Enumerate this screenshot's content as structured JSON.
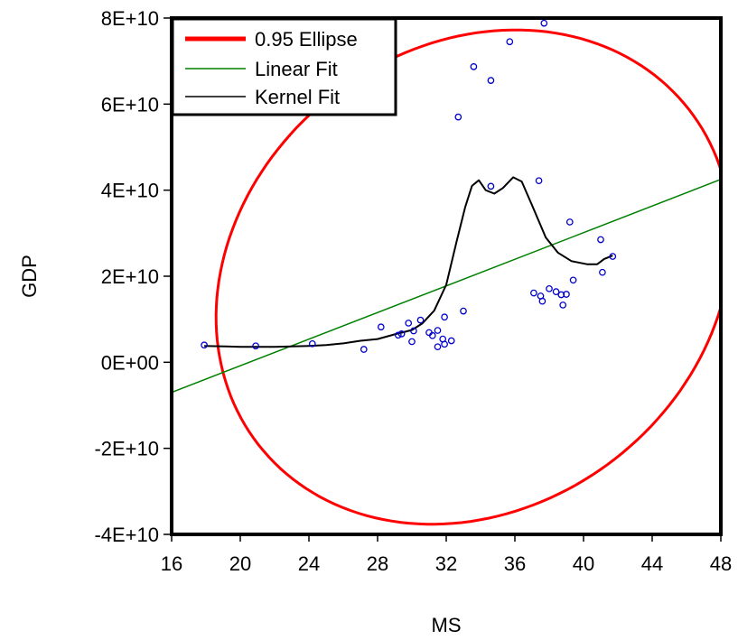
{
  "chart_data": {
    "type": "scatter",
    "xlabel": "MS",
    "ylabel": "GDP",
    "xlim": [
      16,
      48
    ],
    "ylim": [
      -40000000000,
      80000000000
    ],
    "x_ticks": [
      16,
      20,
      24,
      28,
      32,
      36,
      40,
      44,
      48
    ],
    "x_tick_labels": [
      "16",
      "20",
      "24",
      "28",
      "32",
      "36",
      "40",
      "44",
      "48"
    ],
    "y_ticks": [
      -40000000000,
      -20000000000,
      0,
      20000000000,
      40000000000,
      60000000000,
      80000000000
    ],
    "y_tick_labels": [
      "-4E+10",
      "-2E+10",
      "0E+00",
      "2E+10",
      "4E+10",
      "6E+10",
      "8E+10"
    ],
    "grid": false,
    "legend_position": "top-left",
    "colors": {
      "points": "#0000cc",
      "ellipse": "#ff0000",
      "linear_fit": "#008000",
      "kernel_fit": "#000000",
      "frame": "#000000"
    },
    "legend": [
      {
        "label": "0.95 Ellipse",
        "color": "#ff0000",
        "style": "thick"
      },
      {
        "label": "Linear Fit",
        "color": "#008000",
        "style": "thin"
      },
      {
        "label": "Kernel Fit",
        "color": "#000000",
        "style": "thin"
      }
    ],
    "series": [
      {
        "kind": "points",
        "values": [
          {
            "x": 17.9,
            "y": 4000000000
          },
          {
            "x": 20.9,
            "y": 3800000000
          },
          {
            "x": 24.2,
            "y": 4300000000
          },
          {
            "x": 27.2,
            "y": 3000000000
          },
          {
            "x": 28.2,
            "y": 8200000000
          },
          {
            "x": 29.2,
            "y": 6300000000
          },
          {
            "x": 29.4,
            "y": 6600000000
          },
          {
            "x": 29.8,
            "y": 9100000000
          },
          {
            "x": 30.0,
            "y": 4800000000
          },
          {
            "x": 30.1,
            "y": 7300000000
          },
          {
            "x": 30.5,
            "y": 9800000000
          },
          {
            "x": 31.0,
            "y": 6900000000
          },
          {
            "x": 31.2,
            "y": 6200000000
          },
          {
            "x": 31.5,
            "y": 7400000000
          },
          {
            "x": 31.5,
            "y": 3600000000
          },
          {
            "x": 31.8,
            "y": 5400000000
          },
          {
            "x": 31.9,
            "y": 4200000000
          },
          {
            "x": 31.9,
            "y": 10500000000
          },
          {
            "x": 32.3,
            "y": 5000000000
          },
          {
            "x": 33.0,
            "y": 11900000000
          },
          {
            "x": 32.7,
            "y": 57000000000
          },
          {
            "x": 33.6,
            "y": 68700000000
          },
          {
            "x": 34.6,
            "y": 65500000000
          },
          {
            "x": 34.6,
            "y": 40900000000
          },
          {
            "x": 35.7,
            "y": 74500000000
          },
          {
            "x": 37.4,
            "y": 42200000000
          },
          {
            "x": 37.7,
            "y": 78800000000
          },
          {
            "x": 37.1,
            "y": 16100000000
          },
          {
            "x": 37.5,
            "y": 15400000000
          },
          {
            "x": 37.6,
            "y": 14200000000
          },
          {
            "x": 38.0,
            "y": 17100000000
          },
          {
            "x": 38.4,
            "y": 16400000000
          },
          {
            "x": 38.7,
            "y": 15700000000
          },
          {
            "x": 38.8,
            "y": 13300000000
          },
          {
            "x": 39.0,
            "y": 15800000000
          },
          {
            "x": 39.2,
            "y": 32600000000
          },
          {
            "x": 39.4,
            "y": 19100000000
          },
          {
            "x": 41.0,
            "y": 28500000000
          },
          {
            "x": 41.1,
            "y": 20900000000
          },
          {
            "x": 41.7,
            "y": 24600000000
          }
        ]
      },
      {
        "kind": "linear_fit",
        "name": "Linear Fit",
        "values": [
          {
            "x": 16,
            "y": -7000000000
          },
          {
            "x": 48,
            "y": 42500000000
          }
        ]
      },
      {
        "kind": "kernel_fit",
        "name": "Kernel Fit",
        "values": [
          {
            "x": 17.9,
            "y": 3800000000
          },
          {
            "x": 20,
            "y": 3600000000
          },
          {
            "x": 22,
            "y": 3600000000
          },
          {
            "x": 24,
            "y": 3800000000
          },
          {
            "x": 25,
            "y": 4000000000
          },
          {
            "x": 26,
            "y": 4400000000
          },
          {
            "x": 27,
            "y": 5000000000
          },
          {
            "x": 28,
            "y": 5400000000
          },
          {
            "x": 29,
            "y": 6500000000
          },
          {
            "x": 30,
            "y": 7500000000
          },
          {
            "x": 30.6,
            "y": 9000000000
          },
          {
            "x": 31.3,
            "y": 12000000000
          },
          {
            "x": 32,
            "y": 18000000000
          },
          {
            "x": 32.6,
            "y": 28000000000
          },
          {
            "x": 33.1,
            "y": 36000000000
          },
          {
            "x": 33.5,
            "y": 41000000000
          },
          {
            "x": 33.9,
            "y": 42300000000
          },
          {
            "x": 34.3,
            "y": 40000000000
          },
          {
            "x": 34.8,
            "y": 39200000000
          },
          {
            "x": 35.3,
            "y": 40500000000
          },
          {
            "x": 35.9,
            "y": 43000000000
          },
          {
            "x": 36.4,
            "y": 42000000000
          },
          {
            "x": 37.0,
            "y": 36500000000
          },
          {
            "x": 37.8,
            "y": 29000000000
          },
          {
            "x": 38.5,
            "y": 25500000000
          },
          {
            "x": 39.3,
            "y": 23500000000
          },
          {
            "x": 40.2,
            "y": 22800000000
          },
          {
            "x": 40.8,
            "y": 22800000000
          },
          {
            "x": 41.2,
            "y": 24000000000
          },
          {
            "x": 41.7,
            "y": 24800000000
          }
        ]
      },
      {
        "kind": "ellipse",
        "name": "0.95 Ellipse",
        "center": {
          "x": 33.6,
          "y": 19800000000
        },
        "rx": 15.9,
        "ry": 53500000000,
        "rotation_deg": -38
      }
    ]
  }
}
